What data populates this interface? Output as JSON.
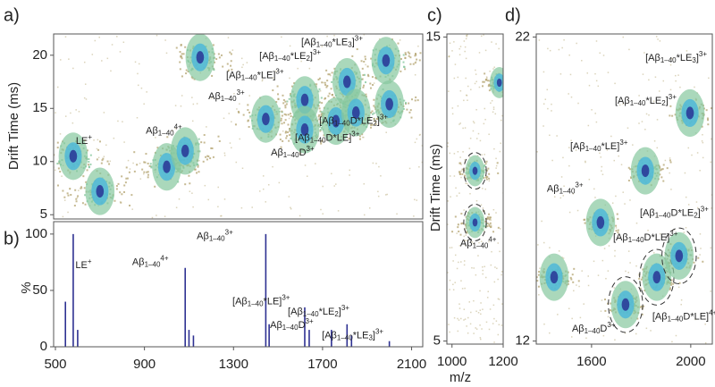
{
  "chart_data": [
    {
      "type": "heatmap",
      "label": "a)",
      "y_label": "Drift Time (ms)",
      "xlim": [
        492,
        2150
      ],
      "ylim": [
        4.6,
        22
      ],
      "yticks": [
        5,
        10,
        15,
        20
      ],
      "colormap": [
        "#b8a978",
        "#86c79e",
        "#4fb8d8",
        "#2b3c98"
      ],
      "spots": [
        {
          "x": 580,
          "y": 10.5
        },
        {
          "x": 700,
          "y": 7.2
        },
        {
          "x": 1000,
          "y": 9.5
        },
        {
          "x": 1083,
          "y": 11
        },
        {
          "x": 1150,
          "y": 19.8
        },
        {
          "x": 1445,
          "y": 14
        },
        {
          "x": 1620,
          "y": 15.8
        },
        {
          "x": 1810,
          "y": 17.5
        },
        {
          "x": 1985,
          "y": 19.5
        },
        {
          "x": 1620,
          "y": 13
        },
        {
          "x": 1760,
          "y": 13.8
        },
        {
          "x": 1850,
          "y": 14.6
        },
        {
          "x": 2000,
          "y": 15.4
        }
      ],
      "annotations": [
        {
          "x": 592,
          "y": 11.9,
          "parts": [
            {
              "t": "LE"
            },
            {
              "sup": "+"
            }
          ]
        },
        {
          "x": 906,
          "y": 12.9,
          "parts": [
            {
              "t": "Aβ"
            },
            {
              "sub": "1–40"
            },
            {
              "sup": "4+"
            }
          ]
        },
        {
          "x": 1187,
          "y": 16.1,
          "parts": [
            {
              "t": "Aβ"
            },
            {
              "sub": "1–40"
            },
            {
              "sup": "3+"
            }
          ]
        },
        {
          "x": 1267,
          "y": 18.1,
          "parts": [
            {
              "t": "[Aβ"
            },
            {
              "sub": "1–40"
            },
            {
              "t": "*LE]"
            },
            {
              "sup": "3+"
            }
          ]
        },
        {
          "x": 1416,
          "y": 19.9,
          "parts": [
            {
              "t": "[Aβ"
            },
            {
              "sub": "1–40"
            },
            {
              "t": "*LE"
            },
            {
              "sub": "2"
            },
            {
              "t": "]"
            },
            {
              "sup": "3+"
            }
          ]
        },
        {
          "x": 1604,
          "y": 21.2,
          "parts": [
            {
              "t": "[Aβ"
            },
            {
              "sub": "1–40"
            },
            {
              "t": "*LE"
            },
            {
              "sub": "3"
            },
            {
              "t": "]"
            },
            {
              "sup": "3+"
            }
          ]
        },
        {
          "x": 1685,
          "y": 13.8,
          "parts": [
            {
              "t": "[Aβ"
            },
            {
              "sub": "1–40"
            },
            {
              "t": "D*LE"
            },
            {
              "sub": "2"
            },
            {
              "t": "]"
            },
            {
              "sup": "3+"
            }
          ]
        },
        {
          "x": 1576,
          "y": 12.2,
          "parts": [
            {
              "t": "[Aβ"
            },
            {
              "sub": "1–40"
            },
            {
              "t": "D*LE]"
            },
            {
              "sup": "3+"
            }
          ]
        },
        {
          "x": 1468,
          "y": 10.8,
          "parts": [
            {
              "t": "Aβ"
            },
            {
              "sub": "1–40"
            },
            {
              "t": "D"
            },
            {
              "sup": "3+"
            }
          ]
        }
      ]
    },
    {
      "type": "bar",
      "label": "b)",
      "y_label": "%",
      "x_label": "m/z",
      "color": "#2e3192",
      "xlim": [
        492,
        2150
      ],
      "ylim": [
        0,
        111
      ],
      "xticks": [
        500,
        900,
        1300,
        1700,
        2100
      ],
      "yticks": [
        0,
        50,
        100
      ],
      "x": [
        545,
        580,
        600,
        1083,
        1100,
        1120,
        1445,
        1460,
        1620,
        1640,
        1740,
        1810,
        1830,
        2000
      ],
      "values": [
        40,
        100,
        15,
        70,
        15,
        10,
        100,
        20,
        35,
        15,
        15,
        20,
        10,
        5
      ],
      "annotations": [
        {
          "x": 590,
          "y": 72,
          "parts": [
            {
              "t": "LE"
            },
            {
              "sup": "+"
            }
          ]
        },
        {
          "x": 845,
          "y": 75,
          "parts": [
            {
              "t": "Aβ"
            },
            {
              "sub": "1–40"
            },
            {
              "sup": "4+"
            }
          ]
        },
        {
          "x": 1135,
          "y": 98,
          "parts": [
            {
              "t": "Aβ"
            },
            {
              "sub": "1–40"
            },
            {
              "sup": "3+"
            }
          ]
        },
        {
          "x": 1295,
          "y": 40,
          "parts": [
            {
              "t": "[Aβ"
            },
            {
              "sub": "1–40"
            },
            {
              "t": "*LE]"
            },
            {
              "sup": "3+"
            }
          ]
        },
        {
          "x": 1544,
          "y": 31,
          "parts": [
            {
              "t": "[Aβ"
            },
            {
              "sub": "1–40"
            },
            {
              "t": "*LE"
            },
            {
              "sub": "2"
            },
            {
              "t": "]"
            },
            {
              "sup": "3+"
            }
          ]
        },
        {
          "x": 1464,
          "y": 19,
          "parts": [
            {
              "t": "Aβ"
            },
            {
              "sub": "1–40"
            },
            {
              "t": "D"
            },
            {
              "sup": "3+"
            }
          ]
        },
        {
          "x": 1697,
          "y": 10,
          "parts": [
            {
              "t": "[Aβ"
            },
            {
              "sub": "1–40"
            },
            {
              "t": "*LE"
            },
            {
              "sub": "3"
            },
            {
              "t": "]"
            },
            {
              "sup": "3+"
            }
          ]
        }
      ]
    },
    {
      "type": "heatmap",
      "label": "c)",
      "y_label": "Drift Time (ms)",
      "xlim": [
        980,
        1200
      ],
      "ylim": [
        4.9,
        15.1
      ],
      "xticks": [
        1000,
        1200
      ],
      "yticks": [
        5,
        15
      ],
      "colormap": [
        "#b8a978",
        "#86c79e",
        "#4fb8d8",
        "#2b3c98"
      ],
      "spots": [
        {
          "x": 1090,
          "y": 10.6,
          "outlined": true
        },
        {
          "x": 1090,
          "y": 8.9,
          "outlined": true
        },
        {
          "x": 1185,
          "y": 13.5
        }
      ],
      "annotations": [
        {
          "x": 1032,
          "y": 8.2,
          "parts": [
            {
              "t": "Aβ"
            },
            {
              "sub": "1–40"
            },
            {
              "sup": "4+"
            }
          ]
        }
      ]
    },
    {
      "type": "heatmap",
      "label": "d)",
      "xlim": [
        1377,
        2087
      ],
      "ylim": [
        11.9,
        22.1
      ],
      "xticks": [
        1600,
        2000
      ],
      "yticks": [
        12,
        22
      ],
      "colormap": [
        "#b8a978",
        "#86c79e",
        "#4fb8d8",
        "#2b3c98"
      ],
      "spots": [
        {
          "x": 1449,
          "y": 14.1
        },
        {
          "x": 1636,
          "y": 15.9
        },
        {
          "x": 1817,
          "y": 17.6
        },
        {
          "x": 1997,
          "y": 19.5
        },
        {
          "x": 1737,
          "y": 13.2,
          "outlined": true
        },
        {
          "x": 1863,
          "y": 14.1,
          "outlined": true
        },
        {
          "x": 1953,
          "y": 14.8,
          "outlined": true
        }
      ],
      "annotations": [
        {
          "x": 1817,
          "y": 21.3,
          "parts": [
            {
              "t": "[Aβ"
            },
            {
              "sub": "1–40"
            },
            {
              "t": "*LE"
            },
            {
              "sub": "3"
            },
            {
              "t": "]"
            },
            {
              "sup": "3+"
            }
          ]
        },
        {
          "x": 1694,
          "y": 19.9,
          "parts": [
            {
              "t": "[Aβ"
            },
            {
              "sub": "1–40"
            },
            {
              "t": "*LE"
            },
            {
              "sub": "2"
            },
            {
              "t": "]"
            },
            {
              "sup": "3+"
            }
          ]
        },
        {
          "x": 1514,
          "y": 18.4,
          "parts": [
            {
              "t": "[Aβ"
            },
            {
              "sub": "1–40"
            },
            {
              "t": "*LE]"
            },
            {
              "sup": "3+"
            }
          ]
        },
        {
          "x": 1420,
          "y": 17.0,
          "parts": [
            {
              "t": "Aβ"
            },
            {
              "sub": "1–40"
            },
            {
              "sup": "3+"
            }
          ]
        },
        {
          "x": 1795,
          "y": 16.2,
          "parts": [
            {
              "t": "[Aβ"
            },
            {
              "sub": "1–40"
            },
            {
              "t": "D*LE"
            },
            {
              "sub": "2"
            },
            {
              "t": "]"
            },
            {
              "sup": "3+"
            }
          ]
        },
        {
          "x": 1687,
          "y": 15.4,
          "parts": [
            {
              "t": "[Aβ"
            },
            {
              "sub": "1–40"
            },
            {
              "t": "D*LE]"
            },
            {
              "sup": "3+"
            }
          ]
        },
        {
          "x": 1521,
          "y": 12.4,
          "parts": [
            {
              "t": "Aβ"
            },
            {
              "sub": "1–40"
            },
            {
              "t": "D"
            },
            {
              "sup": "3+"
            }
          ]
        },
        {
          "x": 1845,
          "y": 12.8,
          "parts": [
            {
              "t": "[Aβ"
            },
            {
              "sub": "1–40"
            },
            {
              "t": "D*LE]"
            },
            {
              "sup": "4+"
            }
          ]
        }
      ]
    }
  ]
}
